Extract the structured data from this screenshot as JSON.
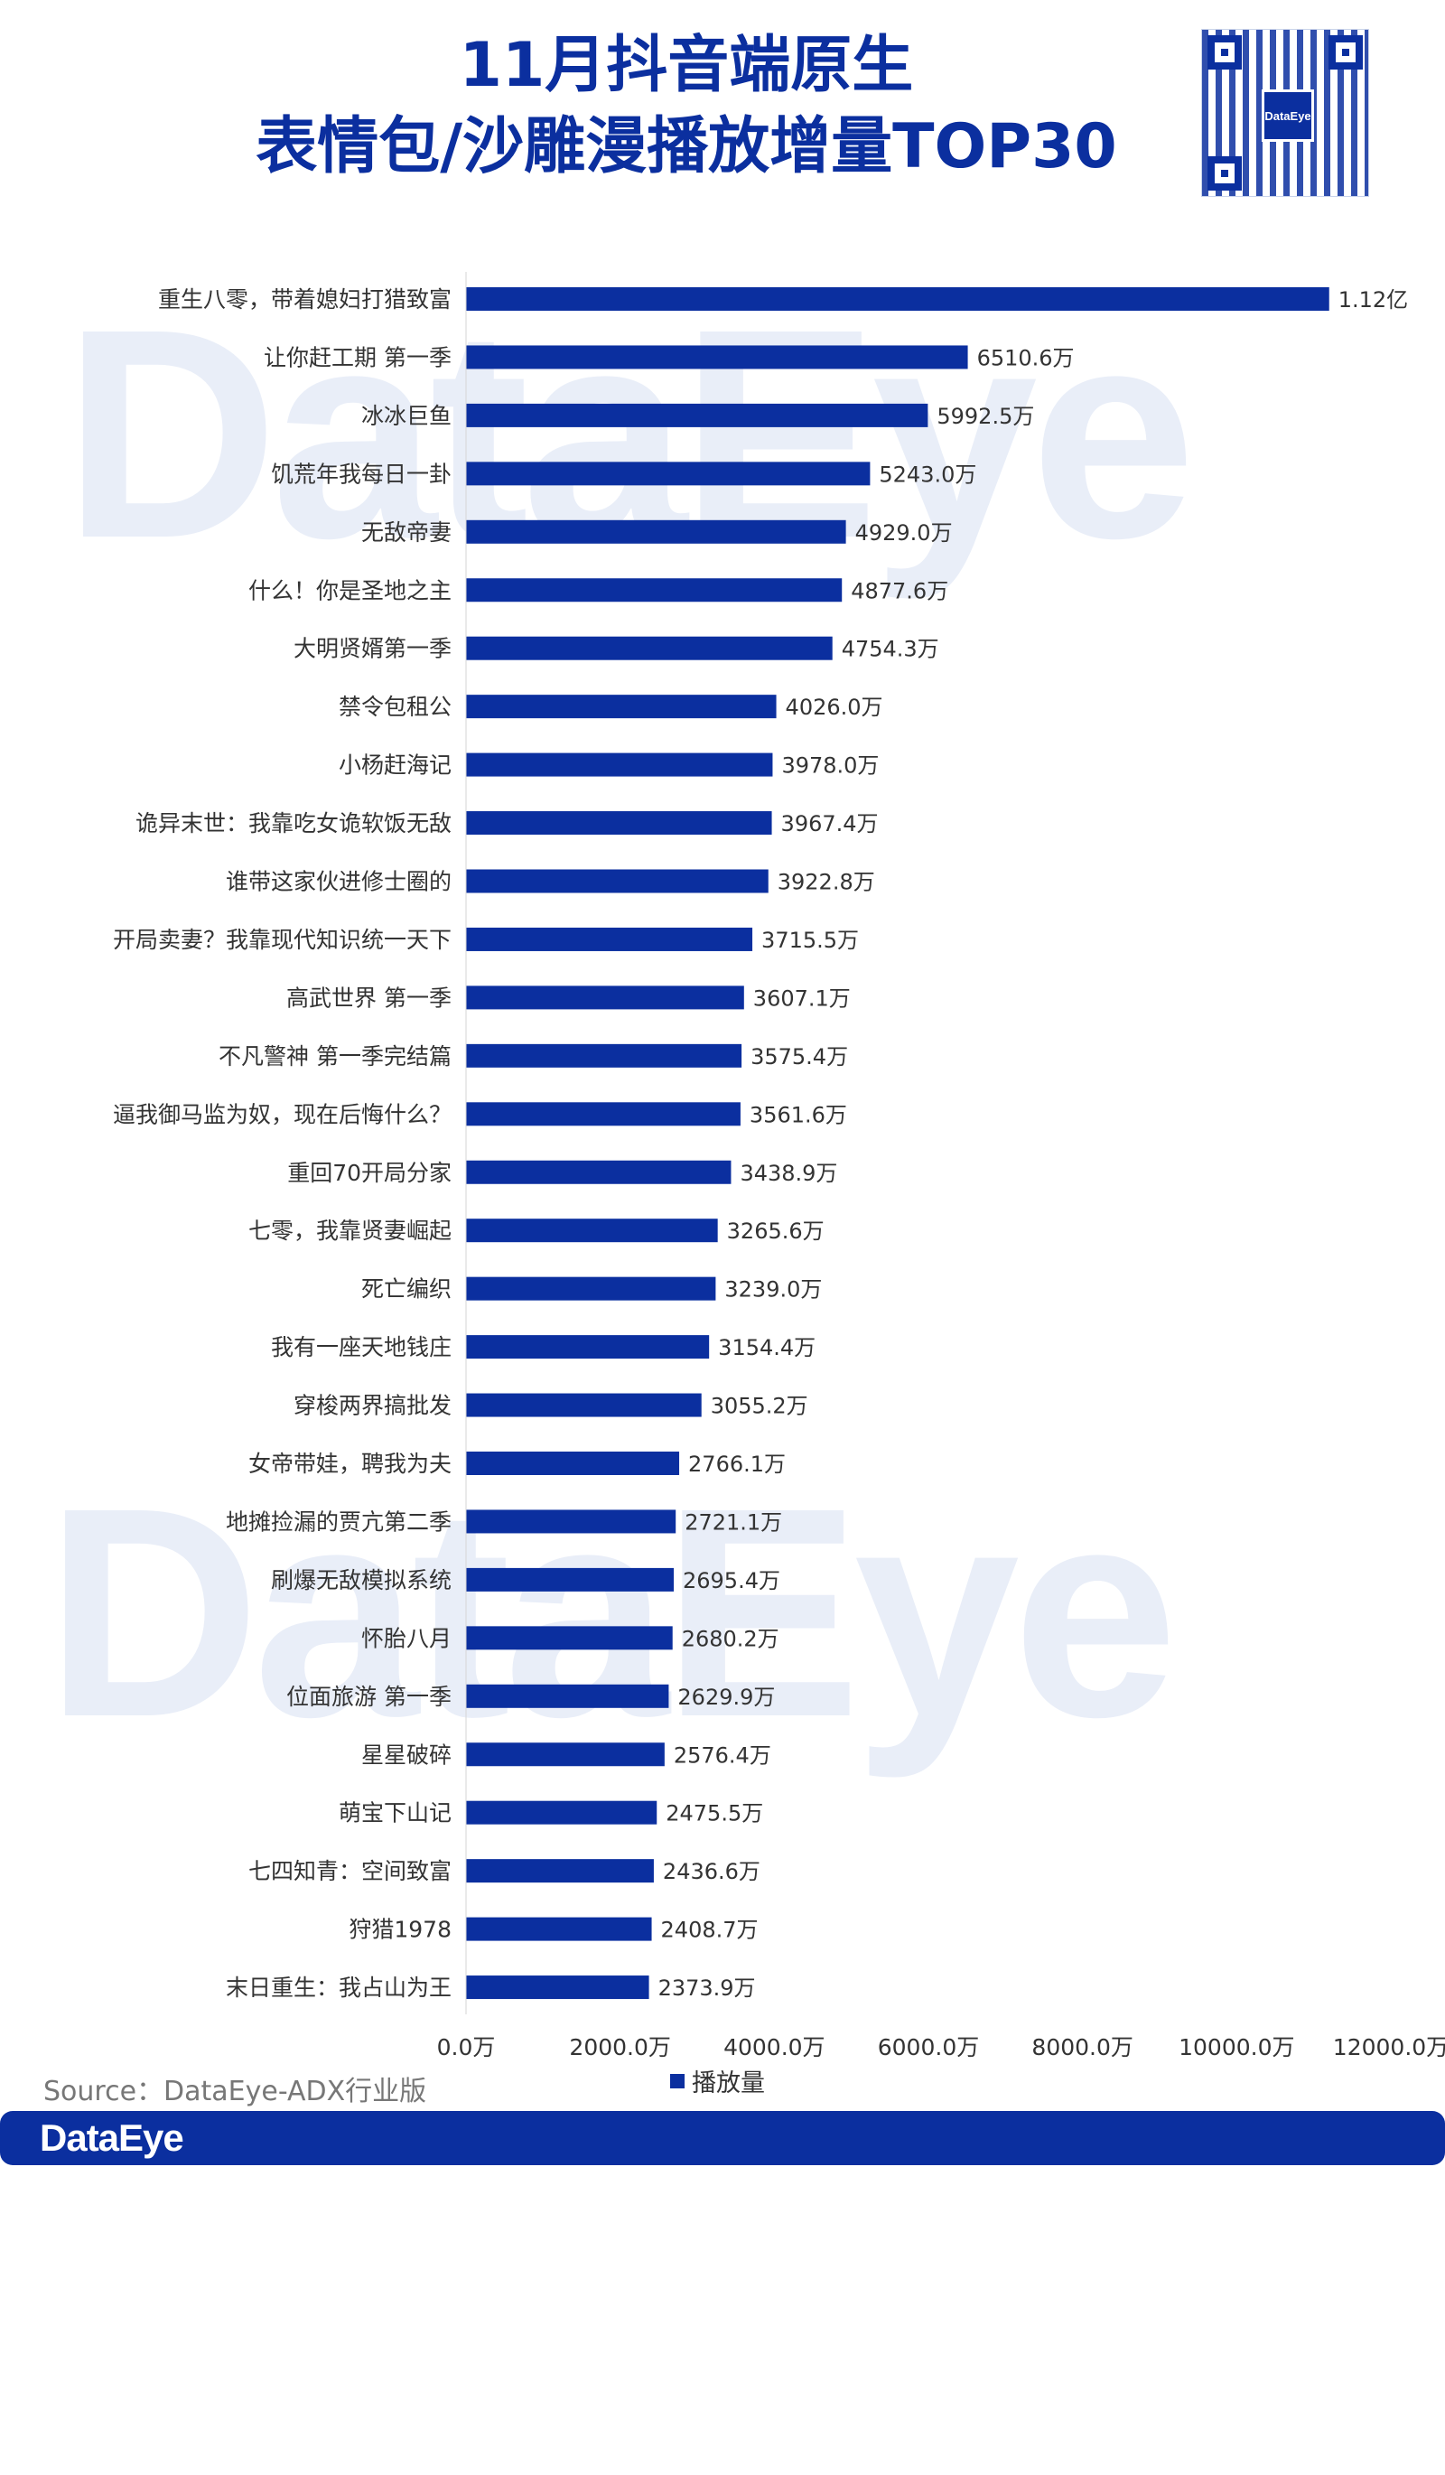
{
  "header": {
    "title_line1": "11月抖音端原生",
    "title_line2": "表情包/沙雕漫播放增量TOP30",
    "qr_logo": "DataEye"
  },
  "watermark": "DataEye",
  "colors": {
    "bar": "#0b2f9f",
    "accent": "#0b2f9f"
  },
  "chart_data": {
    "type": "bar",
    "orientation": "horizontal",
    "series": [
      {
        "name": "播放量",
        "values": [
          11200,
          6510.6,
          5992.5,
          5243.0,
          4929.0,
          4877.6,
          4754.3,
          4026.0,
          3978.0,
          3967.4,
          3922.8,
          3715.5,
          3607.1,
          3575.4,
          3561.6,
          3438.9,
          3265.6,
          3239.0,
          3154.4,
          3055.2,
          2766.1,
          2721.1,
          2695.4,
          2680.2,
          2629.9,
          2576.4,
          2475.5,
          2436.6,
          2408.7,
          2373.9
        ],
        "labels": [
          "1.12亿",
          "6510.6万",
          "5992.5万",
          "5243.0万",
          "4929.0万",
          "4877.6万",
          "4754.3万",
          "4026.0万",
          "3978.0万",
          "3967.4万",
          "3922.8万",
          "3715.5万",
          "3607.1万",
          "3575.4万",
          "3561.6万",
          "3438.9万",
          "3265.6万",
          "3239.0万",
          "3154.4万",
          "3055.2万",
          "2766.1万",
          "2721.1万",
          "2695.4万",
          "2680.2万",
          "2629.9万",
          "2576.4万",
          "2475.5万",
          "2436.6万",
          "2408.7万",
          "2373.9万"
        ]
      }
    ],
    "categories": [
      "重生八零，带着媳妇打猎致富",
      "让你赶工期 第一季",
      "冰冰巨鱼",
      "饥荒年我每日一卦",
      "无敌帝妻",
      "什么！你是圣地之主",
      "大明贤婿第一季",
      "禁令包租公",
      "小杨赶海记",
      "诡异末世：我靠吃女诡软饭无敌",
      "谁带这家伙进修士圈的",
      "开局卖妻？我靠现代知识统一天下",
      "高武世界 第一季",
      "不凡警神 第一季完结篇",
      "逼我御马监为奴，现在后悔什么？",
      "重回70开局分家",
      "七零，我靠贤妻崛起",
      "死亡编织",
      "我有一座天地钱庄",
      "穿梭两界搞批发",
      "女帝带娃，聘我为夫",
      "地摊捡漏的贾亢第二季",
      "刷爆无敌模拟系统",
      "怀胎八月",
      "位面旅游 第一季",
      "星星破碎",
      "萌宝下山记",
      "七四知青：空间致富",
      "狩猎1978",
      "末日重生：我占山为王"
    ],
    "xlim": [
      0,
      12000
    ],
    "xticks": [
      0,
      2000,
      4000,
      6000,
      8000,
      10000,
      12000
    ],
    "xtick_labels": [
      "0.0万",
      "2000.0万",
      "4000.0万",
      "6000.0万",
      "8000.0万",
      "10000.0万",
      "12000.0万"
    ],
    "legend": {
      "placement": "bottom",
      "entries": [
        "播放量"
      ]
    },
    "grid": false
  },
  "source": "Source：DataEye-ADX行业版",
  "footer": {
    "brand": "DataEye"
  }
}
